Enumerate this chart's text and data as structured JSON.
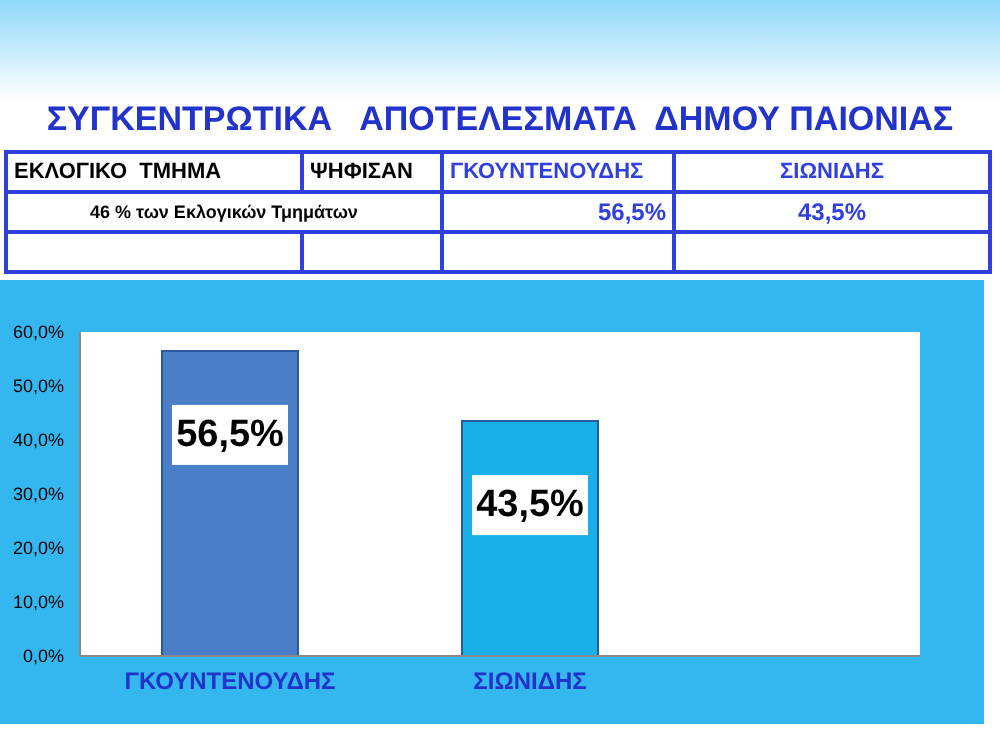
{
  "chart_data": {
    "type": "bar",
    "title": "ΣΥΓΚΕΝΤΡΩΤΙΚΑ   ΑΠΟΤΕΛΕΣΜΑΤΑ  ΔΗΜΟΥ ΠΑΙΟΝΙΑΣ",
    "annotations": [
      "ΕΚΛΟΓΙΚΟ  ΤΜΗΜΑ",
      "ΨΗΦΙΣΑΝ",
      "46 % των Εκλογικών Τμημάτων"
    ],
    "categories": [
      "ΓΚΟΥΝΤΕΝΟΥΔΗΣ",
      "ΣΙΩΝΙΔΗΣ"
    ],
    "values": [
      56.5,
      43.5
    ],
    "colors": [
      "#4a7fc8",
      "#19b0ea"
    ],
    "value_labels": [
      "56,5%",
      "43,5%"
    ],
    "ylim": [
      0,
      60
    ],
    "yticks": [
      {
        "value": 0,
        "label": "0,0%"
      },
      {
        "value": 10,
        "label": "10,0%"
      },
      {
        "value": 20,
        "label": "20,0%"
      },
      {
        "value": 30,
        "label": "30,0%"
      },
      {
        "value": 40,
        "label": "40,0%"
      },
      {
        "value": 50,
        "label": "50,0%"
      },
      {
        "value": 60,
        "label": "60,0%"
      }
    ],
    "grid": false,
    "legend": false
  }
}
